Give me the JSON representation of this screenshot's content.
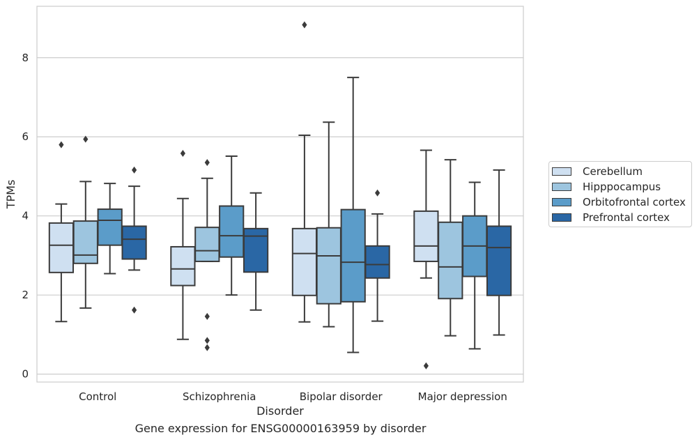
{
  "chart_data": {
    "type": "box",
    "caption": "Gene expression for ENSG00000163959 by disorder",
    "xlabel": "Disorder",
    "ylabel": "TPMs",
    "ylim": [
      -0.2,
      9.3
    ],
    "yticks": [
      0,
      2,
      4,
      6,
      8
    ],
    "grid": "horizontal",
    "legend_position": "right",
    "categories": [
      "Control",
      "Schizophrenia",
      "Bipolar disorder",
      "Major depression"
    ],
    "series": [
      {
        "name": "Cerebellum",
        "color": "#cfe0f1",
        "boxes": [
          {
            "whislo": 1.33,
            "q1": 2.57,
            "med": 3.26,
            "q3": 3.82,
            "whishi": 4.3,
            "fliers": [
              5.8
            ]
          },
          {
            "whislo": 0.88,
            "q1": 2.24,
            "med": 2.66,
            "q3": 3.22,
            "whishi": 4.44,
            "fliers": [
              5.58
            ]
          },
          {
            "whislo": 1.32,
            "q1": 1.99,
            "med": 3.05,
            "q3": 3.68,
            "whishi": 6.04,
            "fliers": [
              8.83
            ]
          },
          {
            "whislo": 2.43,
            "q1": 2.85,
            "med": 3.24,
            "q3": 4.12,
            "whishi": 5.66,
            "fliers": [
              0.21
            ]
          }
        ]
      },
      {
        "name": "Hipppocampus",
        "color": "#9dc5df",
        "boxes": [
          {
            "whislo": 1.67,
            "q1": 2.8,
            "med": 3.01,
            "q3": 3.87,
            "whishi": 4.87,
            "fliers": [
              5.94
            ]
          },
          {
            "whislo": 2.85,
            "q1": 2.85,
            "med": 3.12,
            "q3": 3.71,
            "whishi": 4.95,
            "fliers": [
              5.35,
              1.46,
              0.85,
              0.67
            ]
          },
          {
            "whislo": 1.2,
            "q1": 1.78,
            "med": 2.99,
            "q3": 3.7,
            "whishi": 6.37,
            "fliers": []
          },
          {
            "whislo": 0.97,
            "q1": 1.91,
            "med": 2.71,
            "q3": 3.84,
            "whishi": 5.42,
            "fliers": []
          }
        ]
      },
      {
        "name": "Orbitofrontal cortex",
        "color": "#5b9cc9",
        "boxes": [
          {
            "whislo": 2.54,
            "q1": 3.26,
            "med": 3.89,
            "q3": 4.17,
            "whishi": 4.82,
            "fliers": []
          },
          {
            "whislo": 2.0,
            "q1": 2.96,
            "med": 3.5,
            "q3": 4.25,
            "whishi": 5.51,
            "fliers": []
          },
          {
            "whislo": 0.55,
            "q1": 1.83,
            "med": 2.83,
            "q3": 4.16,
            "whishi": 7.5,
            "fliers": []
          },
          {
            "whislo": 0.64,
            "q1": 2.47,
            "med": 3.24,
            "q3": 4.0,
            "whishi": 4.85,
            "fliers": []
          }
        ]
      },
      {
        "name": "Prefrontal cortex",
        "color": "#2a67a5",
        "boxes": [
          {
            "whislo": 2.63,
            "q1": 2.91,
            "med": 3.41,
            "q3": 3.74,
            "whishi": 4.75,
            "fliers": [
              5.16,
              1.62
            ]
          },
          {
            "whislo": 1.62,
            "q1": 2.58,
            "med": 3.49,
            "q3": 3.68,
            "whishi": 4.58,
            "fliers": []
          },
          {
            "whislo": 1.34,
            "q1": 2.43,
            "med": 2.77,
            "q3": 3.24,
            "whishi": 4.05,
            "fliers": [
              4.58
            ]
          },
          {
            "whislo": 0.99,
            "q1": 1.99,
            "med": 3.2,
            "q3": 3.74,
            "whishi": 5.16,
            "fliers": []
          }
        ]
      }
    ]
  }
}
